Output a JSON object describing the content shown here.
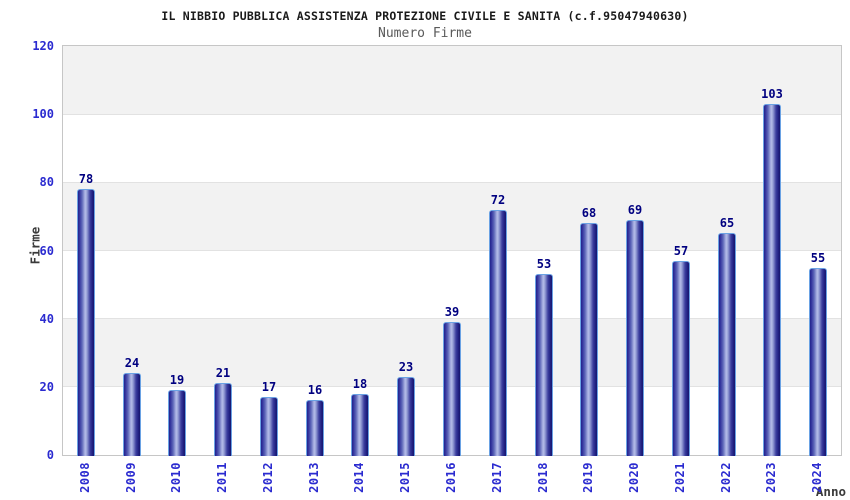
{
  "header": {
    "title": "IL NIBBIO PUBBLICA ASSISTENZA PROTEZIONE CIVILE E SANITA (c.f.95047940630)",
    "subtitle": "Numero Firme"
  },
  "chart_data": {
    "type": "bar",
    "title": "IL NIBBIO PUBBLICA ASSISTENZA PROTEZIONE CIVILE E SANITA (c.f.95047940630)",
    "subtitle": "Numero Firme",
    "xlabel": "Anno",
    "ylabel": "Firme",
    "categories": [
      "2008",
      "2009",
      "2010",
      "2011",
      "2012",
      "2013",
      "2014",
      "2015",
      "2016",
      "2017",
      "2018",
      "2019",
      "2020",
      "2021",
      "2022",
      "2023",
      "2024"
    ],
    "values": [
      78,
      24,
      19,
      21,
      17,
      16,
      18,
      23,
      39,
      72,
      53,
      68,
      69,
      57,
      65,
      103,
      55
    ],
    "ylim": [
      0,
      120
    ],
    "yticks": [
      0,
      20,
      40,
      60,
      80,
      100,
      120
    ],
    "grid": true,
    "legend": "none",
    "band_shading": "alternating horizontal bands every 20 units",
    "colors": {
      "bar_dark": "#23238b",
      "bar_light": "#b4bce8",
      "bar_border": "#6aa2e4",
      "value_label": "#000080",
      "tick_label": "#2b2bd0",
      "band_gray": "#f2f2f2",
      "gridline": "#e2e2e2",
      "plot_border": "#c6c6c6",
      "title": "#1a1a1a",
      "subtitle": "#5a5a5a",
      "axis_title": "#3a3a3a"
    }
  }
}
